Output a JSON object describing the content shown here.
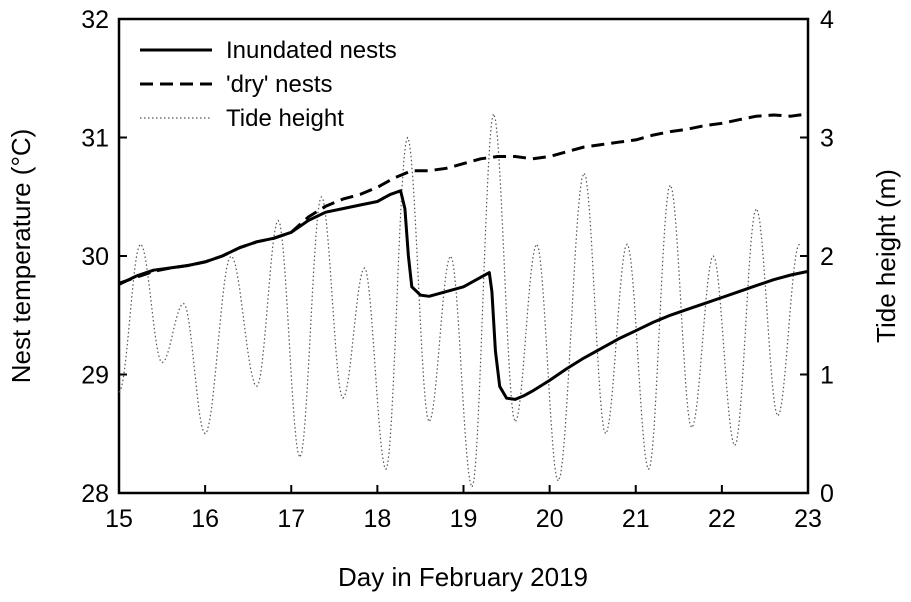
{
  "chart_data": {
    "type": "line",
    "title": "",
    "xlabel": "Day in February 2019",
    "ylabel": "Nest temperature (°C)",
    "y2label": "Tide height (m)",
    "xlim": [
      15,
      23
    ],
    "ylim": [
      28,
      32
    ],
    "y2lim": [
      0,
      4
    ],
    "xticks": [
      "15",
      "16",
      "17",
      "18",
      "19",
      "20",
      "21",
      "22",
      "23"
    ],
    "yticks": [
      "28",
      "29",
      "30",
      "31",
      "32"
    ],
    "y2ticks": [
      "0",
      "1",
      "2",
      "3",
      "4"
    ],
    "grid": false,
    "legend_position": "top-left",
    "series": [
      {
        "name": "Inundated nests",
        "axis": "left",
        "style": "solid",
        "x": [
          15.0,
          15.2,
          15.4,
          15.6,
          15.8,
          16.0,
          16.2,
          16.4,
          16.6,
          16.8,
          17.0,
          17.2,
          17.4,
          17.6,
          17.8,
          18.0,
          18.15,
          18.27,
          18.32,
          18.36,
          18.4,
          18.5,
          18.6,
          18.8,
          19.0,
          19.2,
          19.3,
          19.33,
          19.37,
          19.42,
          19.5,
          19.6,
          19.7,
          19.8,
          20.0,
          20.2,
          20.4,
          20.6,
          20.8,
          21.0,
          21.2,
          21.4,
          21.6,
          21.8,
          22.0,
          22.2,
          22.4,
          22.6,
          22.8,
          23.0
        ],
        "values": [
          29.76,
          29.83,
          29.88,
          29.9,
          29.92,
          29.95,
          30.0,
          30.07,
          30.12,
          30.15,
          30.2,
          30.3,
          30.37,
          30.4,
          30.43,
          30.46,
          30.52,
          30.55,
          30.4,
          30.0,
          29.74,
          29.67,
          29.66,
          29.7,
          29.74,
          29.82,
          29.86,
          29.7,
          29.2,
          28.9,
          28.8,
          28.79,
          28.82,
          28.86,
          28.95,
          29.05,
          29.14,
          29.22,
          29.3,
          29.37,
          29.44,
          29.5,
          29.55,
          29.6,
          29.65,
          29.7,
          29.75,
          29.8,
          29.84,
          29.87
        ]
      },
      {
        "name": "'dry' nests",
        "axis": "left",
        "style": "dashed",
        "x": [
          15.0,
          15.2,
          15.4,
          15.6,
          15.8,
          16.0,
          16.2,
          16.4,
          16.6,
          16.8,
          17.0,
          17.2,
          17.4,
          17.6,
          17.8,
          18.0,
          18.2,
          18.4,
          18.6,
          18.8,
          19.0,
          19.2,
          19.4,
          19.6,
          19.8,
          20.0,
          20.2,
          20.4,
          20.6,
          20.8,
          21.0,
          21.2,
          21.4,
          21.6,
          21.8,
          22.0,
          22.2,
          22.4,
          22.6,
          22.8,
          23.0
        ],
        "values": [
          29.77,
          29.82,
          29.87,
          29.9,
          29.92,
          29.95,
          30.0,
          30.07,
          30.12,
          30.15,
          30.2,
          30.33,
          30.42,
          30.48,
          30.52,
          30.58,
          30.66,
          30.72,
          30.72,
          30.74,
          30.78,
          30.82,
          30.84,
          30.84,
          30.82,
          30.84,
          30.88,
          30.92,
          30.94,
          30.96,
          30.98,
          31.02,
          31.05,
          31.07,
          31.1,
          31.12,
          31.15,
          31.18,
          31.19,
          31.18,
          31.2
        ]
      },
      {
        "name": "Tide height",
        "axis": "right",
        "style": "dotted",
        "x": [
          15.0,
          15.25,
          15.5,
          15.75,
          16.0,
          16.3,
          16.6,
          16.85,
          17.1,
          17.35,
          17.6,
          17.85,
          18.1,
          18.35,
          18.6,
          18.85,
          19.1,
          19.35,
          19.6,
          19.85,
          20.1,
          20.4,
          20.65,
          20.9,
          21.15,
          21.4,
          21.65,
          21.9,
          22.15,
          22.4,
          22.65,
          22.9
        ],
        "values": [
          0.85,
          2.1,
          1.1,
          1.6,
          0.5,
          2.0,
          0.9,
          2.3,
          0.3,
          2.5,
          0.8,
          1.9,
          0.2,
          3.0,
          0.6,
          2.0,
          0.05,
          3.2,
          0.6,
          2.1,
          0.1,
          2.7,
          0.5,
          2.1,
          0.2,
          2.6,
          0.55,
          2.0,
          0.4,
          2.4,
          0.65,
          2.1
        ]
      }
    ]
  }
}
